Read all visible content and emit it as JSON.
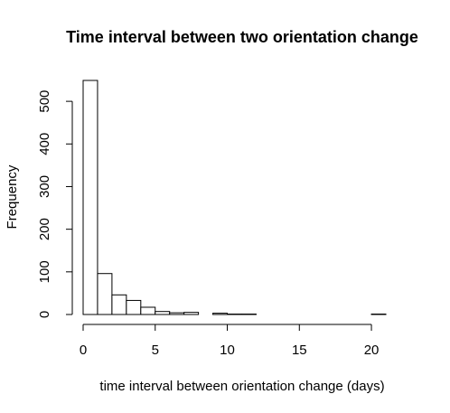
{
  "chart_data": {
    "type": "bar",
    "title": "Time interval between two orientation change",
    "xlabel": "time interval between orientation change (days)",
    "ylabel": "Frequency",
    "bin_width": 1,
    "bin_starts": [
      0,
      1,
      2,
      3,
      4,
      5,
      6,
      7,
      8,
      9,
      10,
      11,
      12,
      13,
      14,
      15,
      16,
      17,
      18,
      19,
      20
    ],
    "values": [
      549,
      96,
      46,
      33,
      17,
      7,
      4,
      5,
      0,
      3,
      1,
      1,
      0,
      0,
      0,
      0,
      0,
      0,
      0,
      0,
      1
    ],
    "xlim": [
      0,
      21
    ],
    "ylim": [
      0,
      549
    ],
    "xticks": [
      0,
      5,
      10,
      15,
      20
    ],
    "yticks": [
      0,
      100,
      200,
      300,
      400,
      500
    ],
    "xtick_labels": [
      "0",
      "5",
      "10",
      "15",
      "20"
    ],
    "ytick_labels": [
      "0",
      "100",
      "200",
      "300",
      "400",
      "500"
    ],
    "grid": false,
    "bar_fill": "#ffffff",
    "bar_stroke": "#000000"
  }
}
